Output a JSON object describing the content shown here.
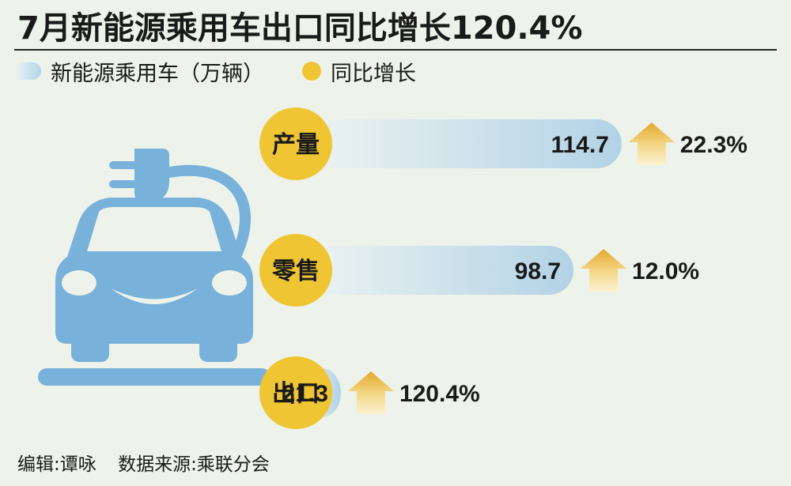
{
  "title": "7月新能源乘用车出口同比增长120.4%",
  "legend": {
    "series": "新能源乘用车（万辆）",
    "growth": "同比增长"
  },
  "colors": {
    "circle": "#efc533",
    "bar_light": "#edf3f1",
    "bar_dark": "#b2d2e6",
    "car": "#78b1d9",
    "arrow": "#e8b23a",
    "background": "#edf3ea"
  },
  "icons": [
    "car-charging-icon",
    "up-arrow-icon"
  ],
  "chart_data": {
    "type": "bar",
    "title": "7月新能源乘用车出口同比增长120.4%",
    "categories": [
      "产量",
      "零售",
      "出口"
    ],
    "series": [
      {
        "name": "新能源乘用车（万辆）",
        "values": [
          114.7,
          98.7,
          21.3
        ],
        "labels": [
          "114.7",
          "98.7",
          "21.3"
        ]
      },
      {
        "name": "同比增长",
        "values": [
          22.3,
          12.0,
          120.4
        ],
        "labels": [
          "22.3%",
          "12.0%",
          "120.4%"
        ]
      }
    ],
    "orientation": "horizontal"
  },
  "footer": {
    "editor": "编辑:谭咏",
    "source": "数据来源:乘联分会"
  }
}
